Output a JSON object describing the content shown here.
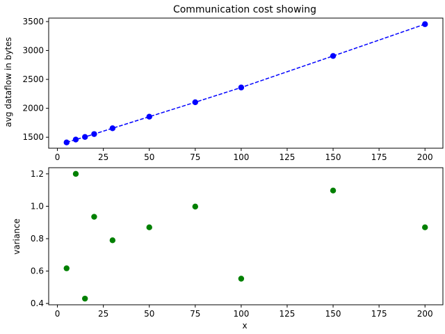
{
  "chart_data": [
    {
      "type": "line",
      "title": "Communication cost showing",
      "xlabel": "",
      "ylabel": "avg dataflow in bytes",
      "xlim": [
        -4.75,
        209.75
      ],
      "ylim": [
        1310,
        3560
      ],
      "xticks": [
        0,
        25,
        50,
        75,
        100,
        125,
        150,
        175,
        200
      ],
      "yticks": [
        1500,
        2000,
        2500,
        3000,
        3500
      ],
      "grid": false,
      "line_style": "dashed",
      "marker": "circle",
      "color": "#0000ff",
      "x": [
        5,
        10,
        15,
        20,
        30,
        50,
        75,
        100,
        150,
        200
      ],
      "y": [
        1410,
        1460,
        1505,
        1555,
        1655,
        1855,
        2105,
        2360,
        2905,
        3455
      ]
    },
    {
      "type": "scatter",
      "title": "",
      "xlabel": "x",
      "ylabel": "variance",
      "xlim": [
        -4.75,
        209.75
      ],
      "ylim": [
        0.392,
        1.238
      ],
      "xticks": [
        0,
        25,
        50,
        75,
        100,
        125,
        150,
        175,
        200
      ],
      "yticks": [
        0.4,
        0.6,
        0.8,
        1.0,
        1.2
      ],
      "ytick_labels": [
        "0.4",
        "0.6",
        "0.8",
        "1.0",
        "1.2"
      ],
      "grid": false,
      "marker": "circle",
      "color": "#008000",
      "x": [
        5,
        10,
        15,
        20,
        30,
        50,
        75,
        100,
        150,
        200
      ],
      "y": [
        0.617,
        1.2,
        0.43,
        0.935,
        0.79,
        0.87,
        0.998,
        0.553,
        1.097,
        0.87
      ]
    }
  ]
}
